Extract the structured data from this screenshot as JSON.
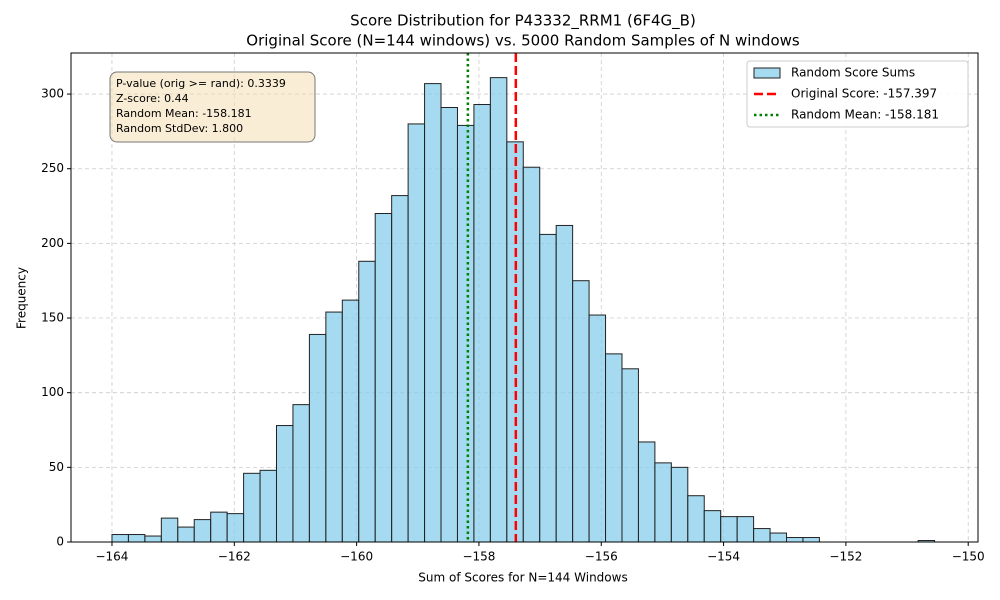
{
  "chart_data": {
    "type": "histogram",
    "title": "Score Distribution for P43332_RRM1 (6F4G_B)",
    "subtitle": "Original Score (N=144 windows) vs. 5000 Random Samples of N windows",
    "xlabel": "Sum of Scores for N=144 Windows",
    "ylabel": "Frequency",
    "bins": [
      -164,
      -163.731,
      -163.462,
      -163.193,
      -162.924,
      -162.655,
      -162.386,
      -162.117,
      -161.848,
      -161.579,
      -161.31,
      -161.041,
      -160.772,
      -160.503,
      -160.234,
      -159.965,
      -159.696,
      -159.427,
      -159.158,
      -158.889,
      -158.62,
      -158.351,
      -158.082,
      -157.813,
      -157.544,
      -157.275,
      -157.006,
      -156.737,
      -156.468,
      -156.199,
      -155.93,
      -155.661,
      -155.392,
      -155.123,
      -154.854,
      -154.585,
      -154.316,
      -154.047,
      -153.778,
      -153.509,
      -153.24,
      -152.971,
      -152.702,
      -152.433,
      -152.164,
      -151.895,
      -151.626,
      -151.357,
      -151.088,
      -150.819,
      -150.55
    ],
    "series": [
      {
        "name": "Random Score Sums",
        "color": "#87ceeb",
        "edgecolor": "#222222",
        "values": [
          5,
          5,
          4,
          16,
          10,
          15,
          20,
          19,
          46,
          48,
          78,
          92,
          139,
          154,
          162,
          188,
          220,
          232,
          280,
          307,
          291,
          279,
          293,
          311,
          268,
          251,
          206,
          212,
          175,
          152,
          126,
          116,
          67,
          53,
          50,
          31,
          21,
          17,
          17,
          9,
          6,
          3,
          3,
          0,
          0,
          0,
          0,
          0,
          0,
          1
        ]
      }
    ],
    "vlines": [
      {
        "name": "Original Score: -157.397",
        "value": -157.397,
        "color": "#ff0000",
        "style": "dashed"
      },
      {
        "name": "Random Mean: -158.181",
        "value": -158.181,
        "color": "#008000",
        "style": "dotted"
      }
    ],
    "annotation": [
      "P-value (orig >= rand): 0.3339",
      "Z-score: 0.44",
      "Random Mean: -158.181",
      "Random StdDev: 1.800"
    ],
    "xlim": [
      -164.67,
      -149.84
    ],
    "ylim": [
      0,
      327.5
    ],
    "xticks": [
      {
        "value": -164,
        "label": "−164"
      },
      {
        "value": -162,
        "label": "−162"
      },
      {
        "value": -160,
        "label": "−160"
      },
      {
        "value": -158,
        "label": "−158"
      },
      {
        "value": -156,
        "label": "−156"
      },
      {
        "value": -154,
        "label": "−154"
      },
      {
        "value": -152,
        "label": "−152"
      },
      {
        "value": -150,
        "label": "−150"
      }
    ],
    "yticks": [
      0,
      50,
      100,
      150,
      200,
      250,
      300
    ],
    "grid": true,
    "legend": "upper right"
  }
}
